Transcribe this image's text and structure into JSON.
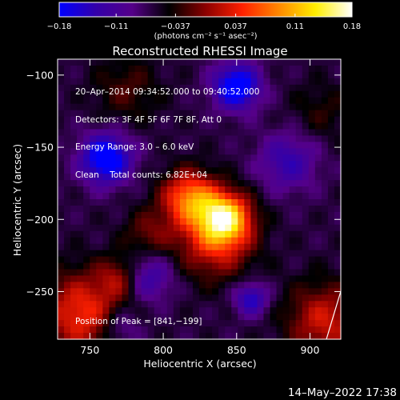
{
  "chart_data": {
    "type": "heatmap",
    "title": "Reconstructed RHESSI Image",
    "xlabel": "Heliocentric X (arcsec)",
    "ylabel": "Heliocentric Y (arcsec)",
    "xlim": [
      728,
      921
    ],
    "ylim": [
      -283,
      -89
    ],
    "x_ticks": [
      750,
      800,
      850,
      900
    ],
    "y_ticks": [
      -250,
      -200,
      -150,
      -100
    ],
    "x_tick_labels": [
      "750",
      "800",
      "850",
      "900"
    ],
    "y_tick_labels": [
      "−250",
      "−200",
      "−150",
      "−100"
    ],
    "colorbar": {
      "min": -0.18,
      "max": 0.18,
      "tick_values": [
        -0.18,
        -0.11,
        -0.037,
        0.037,
        0.11,
        0.18
      ],
      "tick_labels": [
        "−0.18",
        "−0.11",
        "−0.037",
        "0.037",
        "0.11",
        "0.18"
      ],
      "unit_label": "(photons cm⁻² s⁻¹ asec⁻²)",
      "colormap": [
        "#0000ff",
        "#3300aa",
        "#550088",
        "#000000",
        "#8b0000",
        "#ff2000",
        "#ff8800",
        "#ffee00",
        "#ffffff"
      ]
    },
    "info_lines": [
      "20–Apr–2014 09:34:52.000 to 09:40:52.000",
      "Detectors: 3F 4F 5F 6F 7F 8F, Att 0",
      "Energy Range: 3.0 – 6.0 keV",
      "Clean    Total counts: 6.82E+04"
    ],
    "peak_label": "Position of Peak = [841,−199]",
    "peak": {
      "x": 841,
      "y": -199,
      "value": 0.18
    },
    "features": [
      {
        "kind": "emission",
        "x": 842,
        "y": -199,
        "sigma": 12,
        "amp": 0.18
      },
      {
        "kind": "emission",
        "x": 818,
        "y": -185,
        "sigma": 13,
        "amp": 0.14
      },
      {
        "kind": "emission",
        "x": 835,
        "y": -215,
        "sigma": 18,
        "amp": 0.1
      },
      {
        "kind": "emission",
        "x": 790,
        "y": -210,
        "sigma": 12,
        "amp": 0.05
      },
      {
        "kind": "emission",
        "x": 745,
        "y": -265,
        "sigma": 20,
        "amp": 0.11
      },
      {
        "kind": "emission",
        "x": 910,
        "y": -270,
        "sigma": 18,
        "amp": 0.09
      },
      {
        "kind": "emission",
        "x": 775,
        "y": -110,
        "sigma": 16,
        "amp": 0.04
      },
      {
        "kind": "emission",
        "x": 908,
        "y": -125,
        "sigma": 14,
        "amp": 0.03
      },
      {
        "kind": "emission",
        "x": 770,
        "y": -240,
        "sigma": 10,
        "amp": 0.06
      },
      {
        "kind": "absorption",
        "x": 850,
        "y": -108,
        "sigma": 11,
        "amp": -0.14
      },
      {
        "kind": "absorption",
        "x": 761,
        "y": -158,
        "sigma": 12,
        "amp": -0.14
      },
      {
        "kind": "absorption",
        "x": 860,
        "y": -255,
        "sigma": 8,
        "amp": -0.09
      },
      {
        "kind": "absorption",
        "x": 790,
        "y": -240,
        "sigma": 12,
        "amp": -0.07
      },
      {
        "kind": "absorption",
        "x": 885,
        "y": -160,
        "sigma": 14,
        "amp": -0.07
      },
      {
        "kind": "absorption",
        "x": 770,
        "y": -275,
        "sigma": 10,
        "amp": -0.06
      }
    ],
    "background_level": -0.065,
    "grid": false
  },
  "footer_timestamp": "14–May–2022 17:38"
}
